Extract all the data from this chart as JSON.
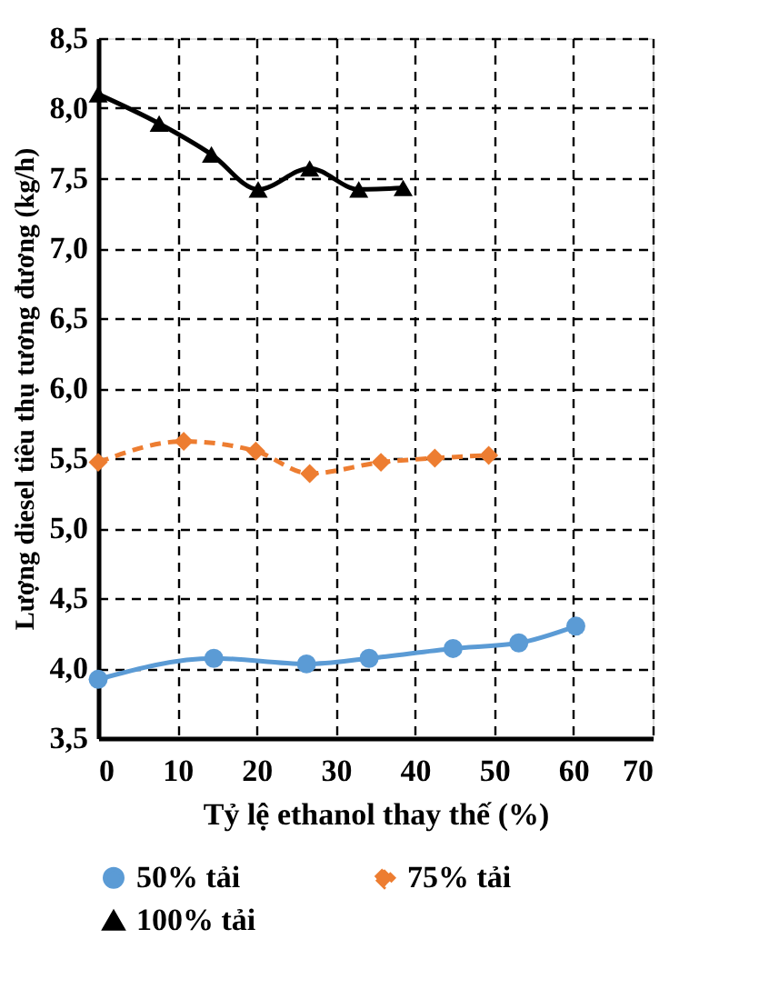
{
  "chart_data": {
    "type": "line",
    "xlabel": "Tỷ lệ ethanol thay thế (%)",
    "ylabel": "Lượng diesel tiêu thụ tương đương (kg/h)",
    "xlim": [
      0,
      70
    ],
    "xticks": [
      0,
      10,
      20,
      30,
      40,
      50,
      60,
      70
    ],
    "ylim": [
      3.5,
      8.5
    ],
    "yticks": [
      {
        "value": 3.5,
        "label": "3,5"
      },
      {
        "value": 4.0,
        "label": "4,0"
      },
      {
        "value": 4.5,
        "label": "4,5"
      },
      {
        "value": 5.0,
        "label": "5,0"
      },
      {
        "value": 5.5,
        "label": "5,5"
      },
      {
        "value": 6.0,
        "label": "6,0"
      },
      {
        "value": 6.5,
        "label": "6,5"
      },
      {
        "value": 7.0,
        "label": "7,0"
      },
      {
        "value": 7.5,
        "label": "7,5"
      },
      {
        "value": 8.0,
        "label": "8,0"
      },
      {
        "value": 8.5,
        "label": "8,5"
      }
    ],
    "grid": true,
    "legend": "bottom",
    "series": [
      {
        "name": "50% tải",
        "color": "#5b9bd5",
        "marker": "circle",
        "line_style": "solid",
        "x": [
          0,
          14.6,
          26.3,
          34.2,
          44.8,
          53.1,
          60.3
        ],
        "values": [
          3.92,
          4.07,
          4.03,
          4.07,
          4.14,
          4.18,
          4.3
        ]
      },
      {
        "name": "75% tải",
        "color": "#ed7d31",
        "marker": "diamond",
        "line_style": "dashed",
        "x": [
          0,
          10.8,
          19.9,
          26.7,
          35.7,
          42.5,
          49.3
        ],
        "values": [
          5.47,
          5.62,
          5.55,
          5.39,
          5.47,
          5.5,
          5.52
        ]
      },
      {
        "name": "100% tải",
        "color": "#000000",
        "marker": "triangle",
        "line_style": "solid",
        "x": [
          0,
          7.7,
          14.3,
          20.2,
          26.7,
          32.9,
          38.5
        ],
        "values": [
          8.1,
          7.89,
          7.67,
          7.42,
          7.57,
          7.42,
          7.43
        ]
      }
    ]
  }
}
